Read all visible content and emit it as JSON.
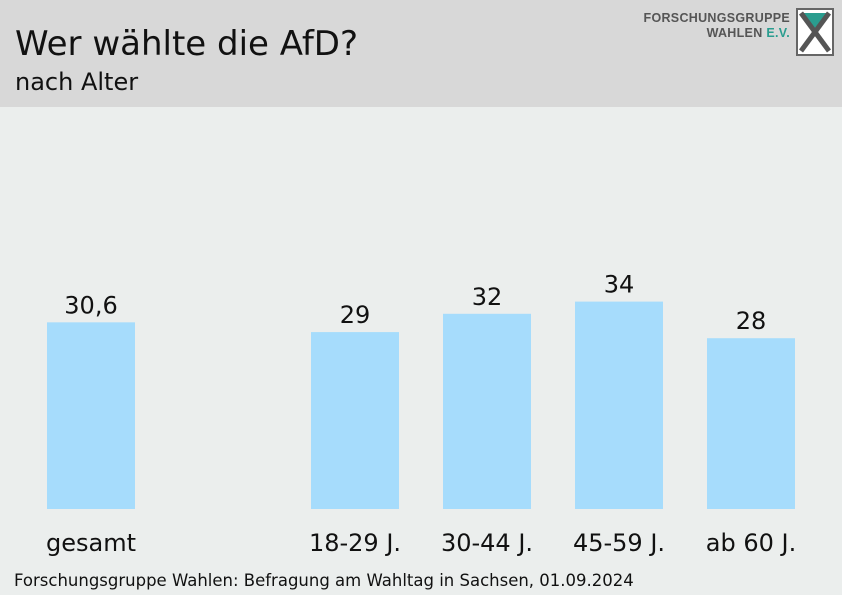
{
  "header": {
    "title": "Wer wählte die AfD?",
    "subtitle": "nach Alter",
    "logo": {
      "line1": "FORSCHUNGSGRUPPE",
      "line2_main": "WAHLEN",
      "line2_accent": "E.V."
    }
  },
  "chart_data": {
    "type": "bar",
    "title": "Wer wählte die AfD?",
    "subtitle": "nach Alter",
    "categories": [
      "gesamt",
      "18-29 J.",
      "30-44 J.",
      "45-59 J.",
      "ab 60 J."
    ],
    "values": [
      30.6,
      29,
      32,
      34,
      28
    ],
    "value_labels": [
      "30,6",
      "29",
      "32",
      "34",
      "28"
    ],
    "ylim": [
      0,
      40
    ],
    "grid": false,
    "legend": "none",
    "bar_color": "#a6dcfc"
  },
  "footer": {
    "source": "Forschungsgruppe Wahlen: Befragung am Wahltag in Sachsen, 01.09.2024"
  },
  "colors": {
    "header_bg": "#d8d8d8",
    "page_bg": "#ebeeed",
    "bar": "#a6dcfc",
    "logo_accent": "#2a9d8f"
  }
}
